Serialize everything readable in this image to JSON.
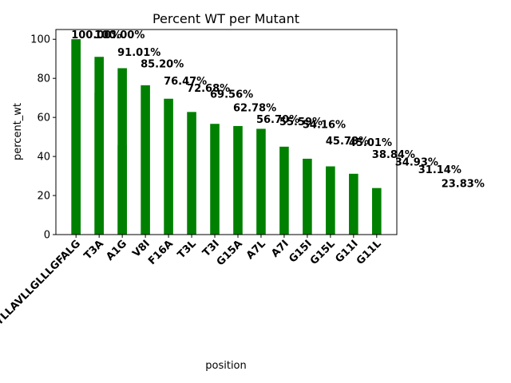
{
  "chart_data": {
    "type": "bar",
    "title": "Percent WT per Mutant",
    "x_label": "position",
    "y_label": "percent_wt",
    "categories": [
      "LLLTYLLAVLLGLLLGFALG",
      "LLLTYLLAVLLGLLLGFALG",
      "T3A",
      "A1G",
      "V8I",
      "T3A",
      "F16A",
      "T3L",
      "T3I",
      "G15A",
      "A7L",
      "A1G",
      "A7I",
      "G15I",
      "G15L",
      "G11I",
      "G11L"
    ],
    "values": [
      100,
      100,
      91.01,
      85.2,
      76.47,
      72.68,
      69.56,
      62.78,
      56.7,
      55.59,
      54.16,
      45.78,
      45.01,
      38.84,
      34.93,
      31.14,
      23.83
    ],
    "value_labels": [
      "100.00%",
      "100.00%",
      "91.01%",
      "85.20%",
      "76.47%",
      "72.68%",
      "69.56%",
      "62.78%",
      "56.70%",
      "55.59%",
      "54.16%",
      "45.78%",
      "45.01%",
      "38.84%",
      "34.93%",
      "31.14%",
      "23.83%"
    ],
    "color": "#008000",
    "ylim": [
      0,
      105
    ],
    "yticks": [
      0,
      20,
      40,
      60,
      80,
      100
    ],
    "grid": false
  }
}
